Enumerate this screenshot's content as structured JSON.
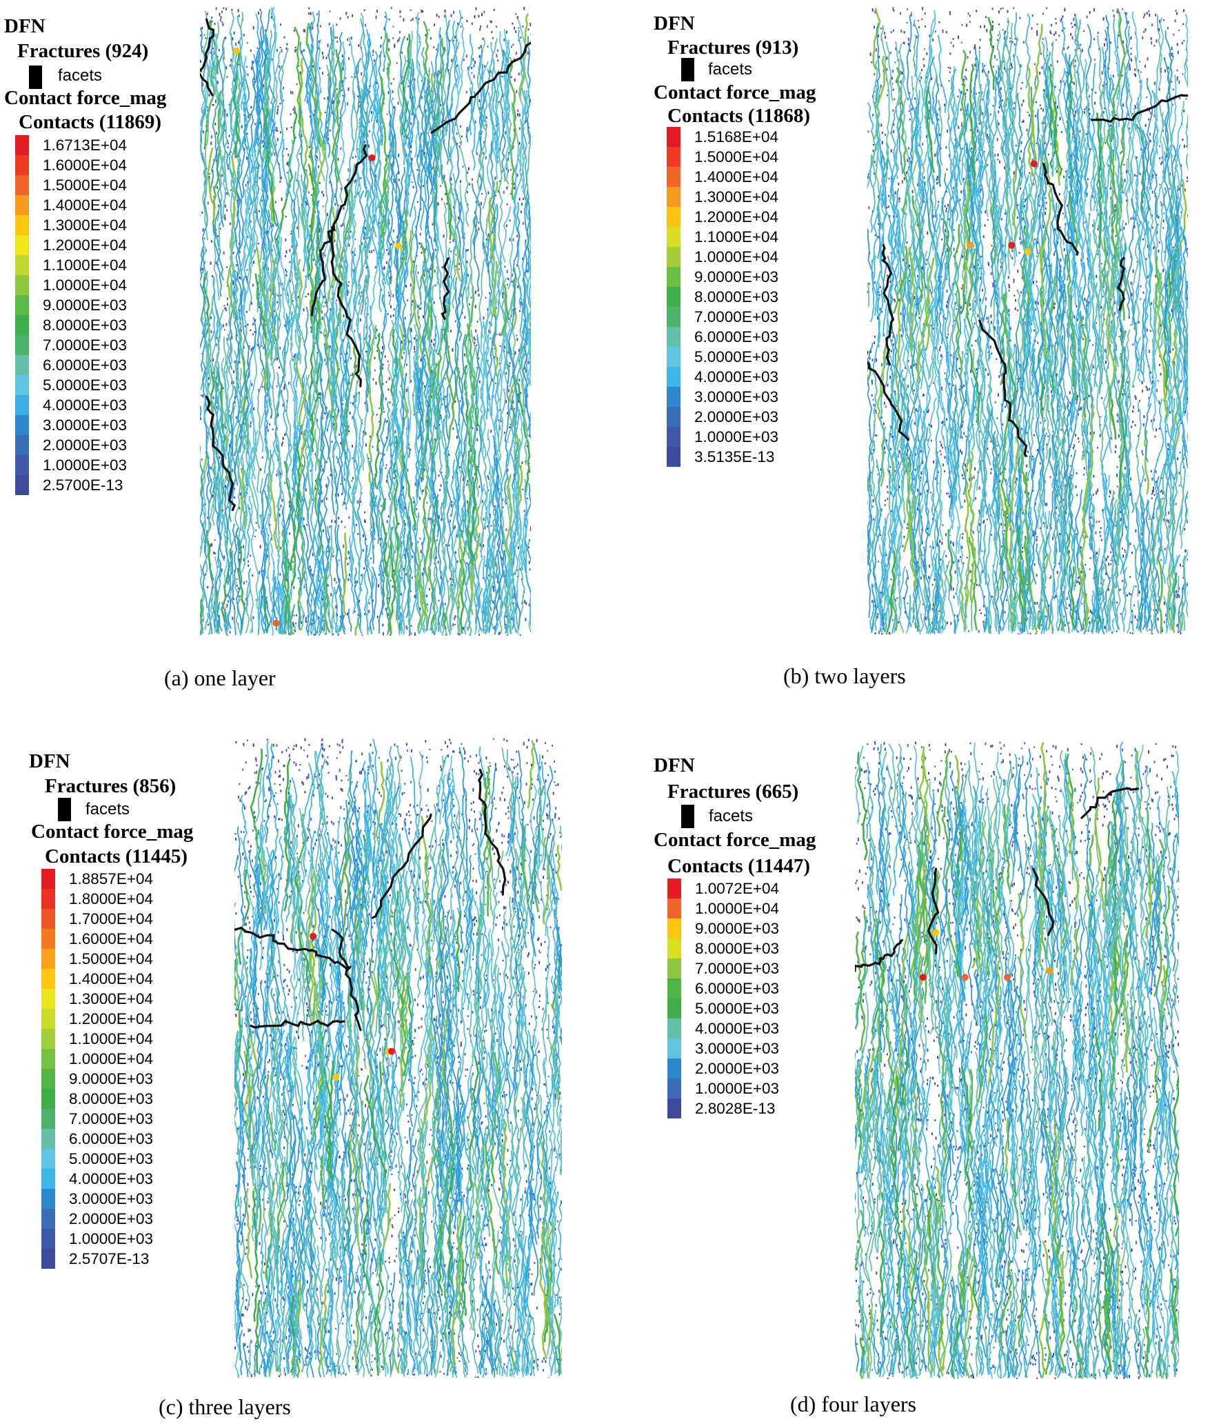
{
  "panels": [
    {
      "id": "a",
      "legend": {
        "dfn": "DFN",
        "fractures": "Fractures (924)",
        "facets": "facets",
        "contact_force": "Contact force_mag",
        "contacts": "Contacts (11869)"
      },
      "scale_values": [
        "1.6713E+04",
        "1.6000E+04",
        "1.5000E+04",
        "1.4000E+04",
        "1.3000E+04",
        "1.2000E+04",
        "1.1000E+04",
        "1.0000E+04",
        "9.0000E+03",
        "8.0000E+03",
        "7.0000E+03",
        "6.0000E+03",
        "5.0000E+03",
        "4.0000E+03",
        "3.0000E+03",
        "2.0000E+03",
        "1.0000E+03",
        "2.5700E-13"
      ],
      "scale_colors": [
        "#e41d24",
        "#ee3b24",
        "#f2652a",
        "#f89a1f",
        "#fbc512",
        "#f0e61a",
        "#bfd72e",
        "#8dc63f",
        "#5bb947",
        "#3fae49",
        "#4db26b",
        "#66bfa8",
        "#5fc4df",
        "#3aaee4",
        "#2f88cf",
        "#3a6fb7",
        "#3f58a8",
        "#3e4a9b"
      ],
      "caption": "(a) one layer"
    },
    {
      "id": "b",
      "legend": {
        "dfn": "DFN",
        "fractures": "Fractures (913)",
        "facets": "facets",
        "contact_force": "Contact force_mag",
        "contacts": "Contacts (11868)"
      },
      "scale_values": [
        "1.5168E+04",
        "1.5000E+04",
        "1.4000E+04",
        "1.3000E+04",
        "1.2000E+04",
        "1.1000E+04",
        "1.0000E+04",
        "9.0000E+03",
        "8.0000E+03",
        "7.0000E+03",
        "6.0000E+03",
        "5.0000E+03",
        "4.0000E+03",
        "3.0000E+03",
        "2.0000E+03",
        "1.0000E+03",
        "3.5135E-13"
      ],
      "scale_colors": [
        "#e41d24",
        "#ee3b24",
        "#f2652a",
        "#f89a1f",
        "#fbc512",
        "#d8df22",
        "#a3cd3a",
        "#6abf45",
        "#3fae49",
        "#4db26b",
        "#66bfa8",
        "#5fc4df",
        "#3fb6e8",
        "#2f88cf",
        "#3a6fb7",
        "#3f58a8",
        "#3e4a9b"
      ],
      "caption": "(b) two layers"
    },
    {
      "id": "c",
      "legend": {
        "dfn": "DFN",
        "fractures": "Fractures (856)",
        "facets": "facets",
        "contact_force": "Contact force_mag",
        "contacts": "Contacts (11445)"
      },
      "scale_values": [
        "1.8857E+04",
        "1.8000E+04",
        "1.7000E+04",
        "1.6000E+04",
        "1.5000E+04",
        "1.4000E+04",
        "1.3000E+04",
        "1.2000E+04",
        "1.1000E+04",
        "1.0000E+04",
        "9.0000E+03",
        "8.0000E+03",
        "7.0000E+03",
        "6.0000E+03",
        "5.0000E+03",
        "4.0000E+03",
        "3.0000E+03",
        "2.0000E+03",
        "1.0000E+03",
        "2.5707E-13"
      ],
      "scale_colors": [
        "#e41d24",
        "#ec3324",
        "#f0552a",
        "#f5781f",
        "#f99f1a",
        "#fbc512",
        "#eee31c",
        "#c9da2a",
        "#9fcd3b",
        "#77c142",
        "#52b548",
        "#3fae49",
        "#4db26b",
        "#66bfa8",
        "#5fc4df",
        "#3fb6e8",
        "#2f88cf",
        "#3a6fb7",
        "#3f58a8",
        "#3e4a9b"
      ],
      "caption": "(c) three layers"
    },
    {
      "id": "d",
      "legend": {
        "dfn": "DFN",
        "fractures": "Fractures (665)",
        "facets": "facets",
        "contact_force": "Contact force_mag",
        "contacts": "Contacts (11447)"
      },
      "scale_values": [
        "1.0072E+04",
        "1.0000E+04",
        "9.0000E+03",
        "8.0000E+03",
        "7.0000E+03",
        "6.0000E+03",
        "5.0000E+03",
        "4.0000E+03",
        "3.0000E+03",
        "2.0000E+03",
        "1.0000E+03",
        "2.8028E-13"
      ],
      "scale_colors": [
        "#e41d24",
        "#f2652a",
        "#fbc512",
        "#d8df22",
        "#8dc63f",
        "#4fb348",
        "#3fae49",
        "#66bfa8",
        "#5fc4df",
        "#2f88cf",
        "#3a6fb7",
        "#3e4a9b"
      ],
      "caption": "(d) four layers"
    }
  ]
}
